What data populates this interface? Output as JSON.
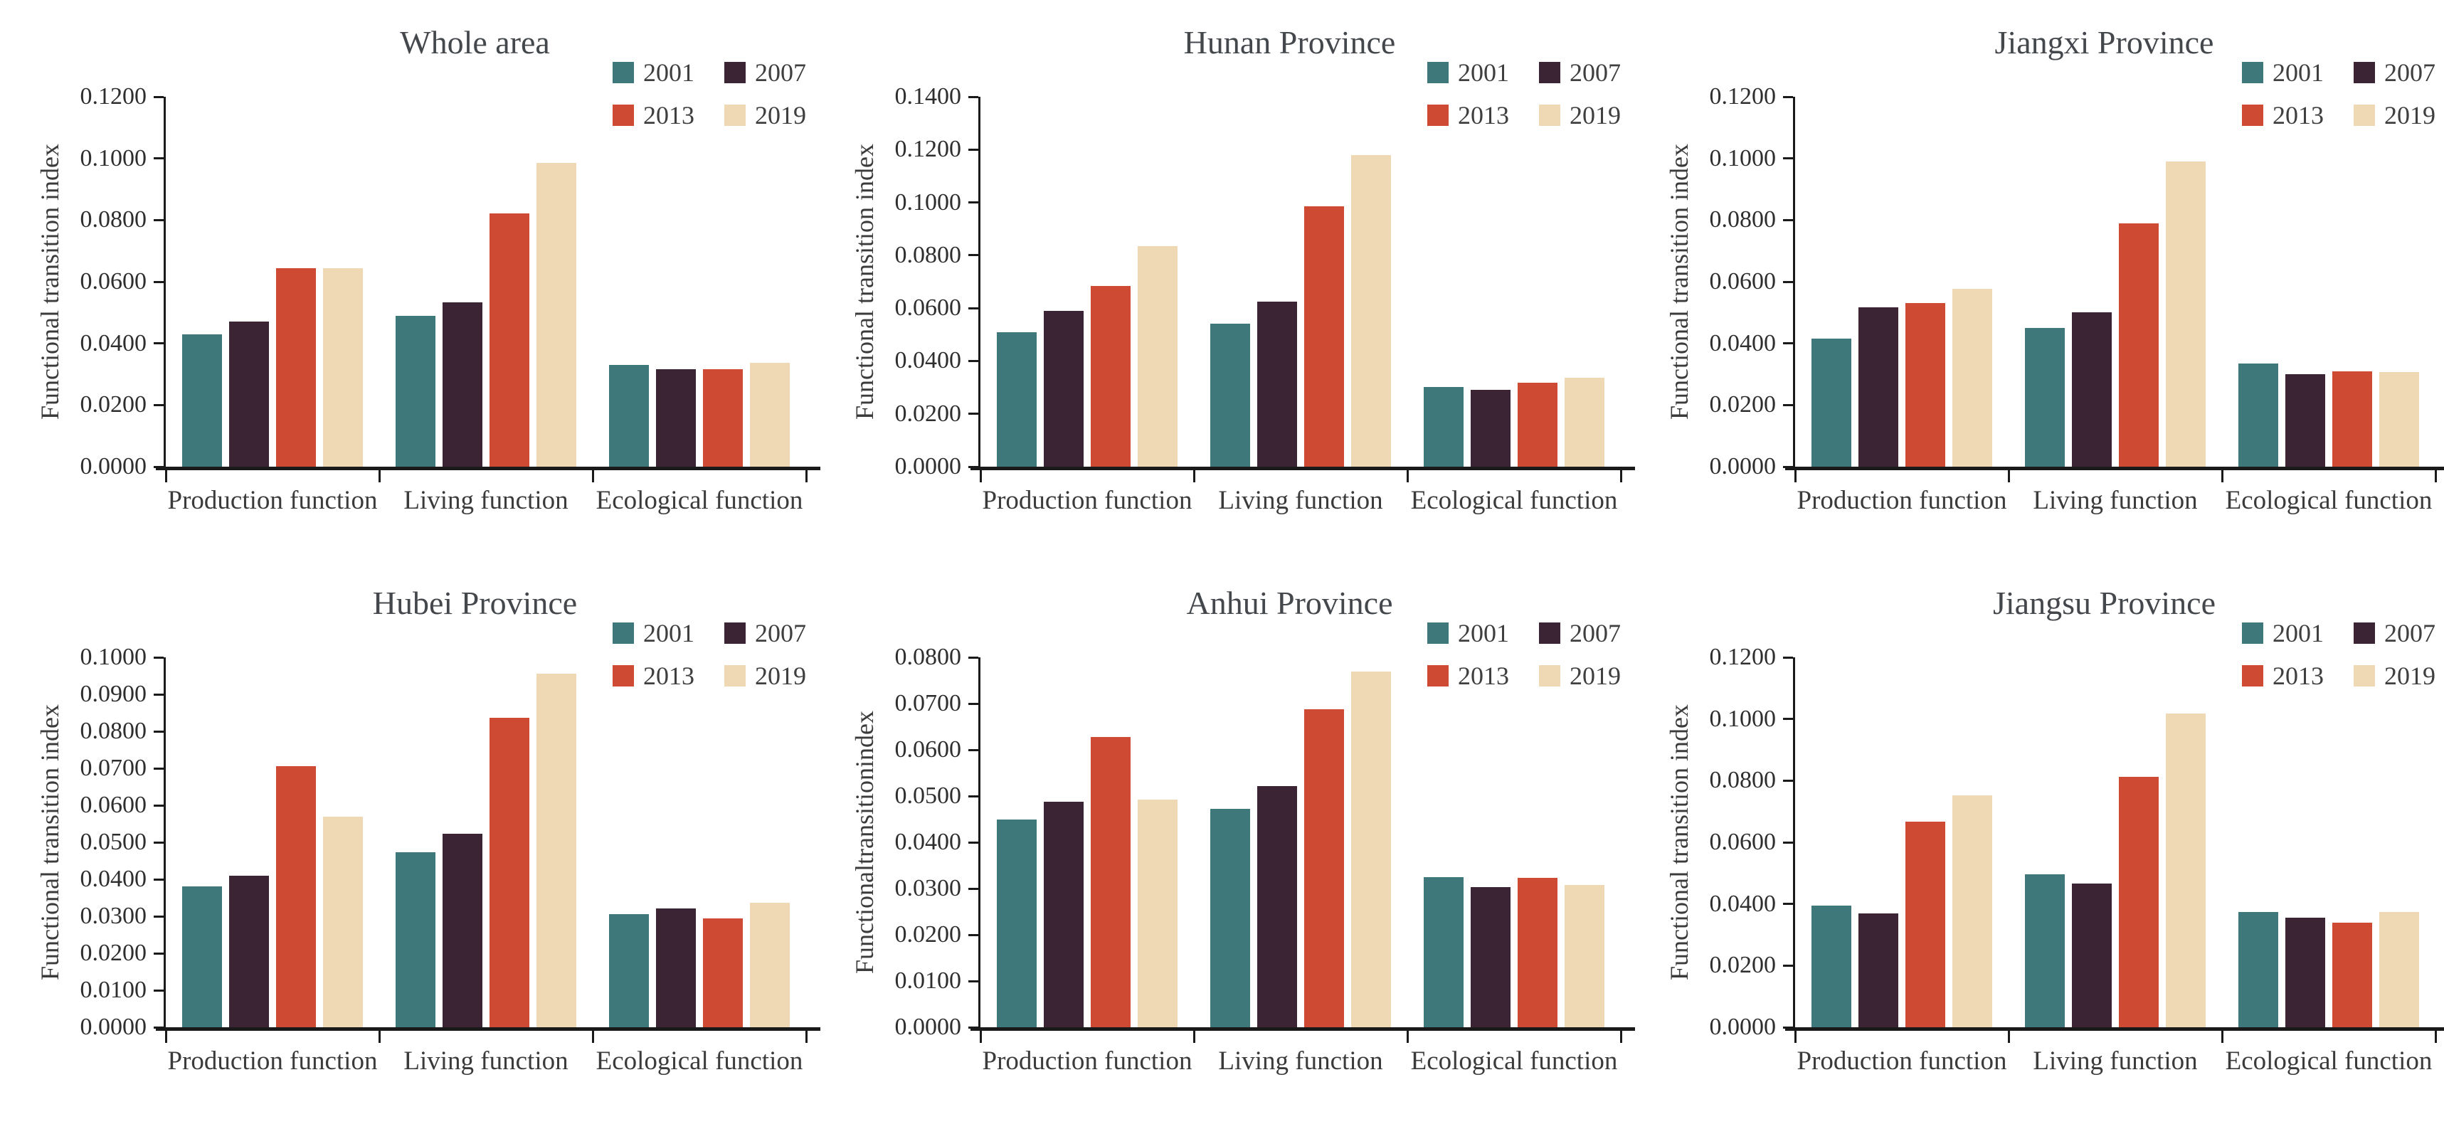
{
  "page": {
    "background": "#ffffff"
  },
  "styles": {
    "axis_color": "#1a1a1a",
    "title_color": "#44484c",
    "text_color": "#3b3b3b",
    "series_colors": {
      "2001": "#3E787B",
      "2007": "#3B2433",
      "2013": "#CF4A32",
      "2019": "#EFD9B5"
    }
  },
  "chart_data": [
    {
      "type": "bar",
      "title": "Whole area",
      "ylabel": "Functional transition index",
      "xlabel": "",
      "categories": [
        "Production function",
        "Living function",
        "Ecological function"
      ],
      "series": [
        {
          "name": "2001",
          "values": [
            0.043,
            0.049,
            0.033
          ]
        },
        {
          "name": "2007",
          "values": [
            0.047,
            0.0533,
            0.0316
          ]
        },
        {
          "name": "2013",
          "values": [
            0.0645,
            0.0822,
            0.0316
          ]
        },
        {
          "name": "2019",
          "values": [
            0.0645,
            0.0985,
            0.0336
          ]
        }
      ],
      "ylim": [
        0,
        0.12
      ],
      "yticks": [
        "0.0000",
        "0.0200",
        "0.0400",
        "0.0600",
        "0.0800",
        "0.1000",
        "0.1200"
      ],
      "legend": [
        "2001",
        "2007",
        "2013",
        "2019"
      ],
      "legend_position": "top-right",
      "grid": false
    },
    {
      "type": "bar",
      "title": "Hunan Province",
      "ylabel": "Functional transition index",
      "xlabel": "",
      "categories": [
        "Production function",
        "Living function",
        "Ecological function"
      ],
      "series": [
        {
          "name": "2001",
          "values": [
            0.051,
            0.054,
            0.0302
          ]
        },
        {
          "name": "2007",
          "values": [
            0.059,
            0.0625,
            0.029
          ]
        },
        {
          "name": "2013",
          "values": [
            0.0685,
            0.0985,
            0.0317
          ]
        },
        {
          "name": "2019",
          "values": [
            0.0835,
            0.118,
            0.0337
          ]
        }
      ],
      "ylim": [
        0,
        0.14
      ],
      "yticks": [
        "0.0000",
        "0.0200",
        "0.0400",
        "0.0600",
        "0.0800",
        "0.1000",
        "0.1200",
        "0.1400"
      ],
      "legend": [
        "2001",
        "2007",
        "2013",
        "2019"
      ],
      "legend_position": "top-right",
      "grid": false
    },
    {
      "type": "bar",
      "title": "Jiangxi Province",
      "ylabel": "Functional transition index",
      "xlabel": "",
      "categories": [
        "Production function",
        "Living function",
        "Ecological function"
      ],
      "series": [
        {
          "name": "2001",
          "values": [
            0.0416,
            0.045,
            0.0334
          ]
        },
        {
          "name": "2007",
          "values": [
            0.0516,
            0.0501,
            0.03
          ]
        },
        {
          "name": "2013",
          "values": [
            0.053,
            0.0789,
            0.0309
          ]
        },
        {
          "name": "2019",
          "values": [
            0.0576,
            0.0989,
            0.0307
          ]
        }
      ],
      "ylim": [
        0,
        0.12
      ],
      "yticks": [
        "0.0000",
        "0.0200",
        "0.0400",
        "0.0600",
        "0.0800",
        "0.1000",
        "0.1200"
      ],
      "legend": [
        "2001",
        "2007",
        "2013",
        "2019"
      ],
      "legend_position": "top-right",
      "grid": false
    },
    {
      "type": "bar",
      "title": "Hubei Province",
      "ylabel": "Functional transition index",
      "xlabel": "",
      "categories": [
        "Production function",
        "Living function",
        "Ecological function"
      ],
      "series": [
        {
          "name": "2001",
          "values": [
            0.038,
            0.0474,
            0.0305
          ]
        },
        {
          "name": "2007",
          "values": [
            0.041,
            0.0524,
            0.0322
          ]
        },
        {
          "name": "2013",
          "values": [
            0.0705,
            0.0836,
            0.0295
          ]
        },
        {
          "name": "2019",
          "values": [
            0.057,
            0.0956,
            0.0337
          ]
        }
      ],
      "ylim": [
        0,
        0.1
      ],
      "yticks": [
        "0.0000",
        "0.0100",
        "0.0200",
        "0.0300",
        "0.0400",
        "0.0500",
        "0.0600",
        "0.0700",
        "0.0800",
        "0.0900",
        "0.1000"
      ],
      "legend": [
        "2001",
        "2007",
        "2013",
        "2019"
      ],
      "legend_position": "top-right",
      "grid": false
    },
    {
      "type": "bar",
      "title": "Anhui Province",
      "ylabel": "Functionaltransitionindex",
      "xlabel": "",
      "categories": [
        "Production function",
        "Living function",
        "Ecological function"
      ],
      "series": [
        {
          "name": "2001",
          "values": [
            0.045,
            0.0472,
            0.0325
          ]
        },
        {
          "name": "2007",
          "values": [
            0.0488,
            0.0522,
            0.0303
          ]
        },
        {
          "name": "2013",
          "values": [
            0.0628,
            0.0687,
            0.0323
          ]
        },
        {
          "name": "2019",
          "values": [
            0.0492,
            0.077,
            0.0308
          ]
        }
      ],
      "ylim": [
        0,
        0.08
      ],
      "yticks": [
        "0.0000",
        "0.0100",
        "0.0200",
        "0.0300",
        "0.0400",
        "0.0500",
        "0.0600",
        "0.0700",
        "0.0800"
      ],
      "legend": [
        "2001",
        "2007",
        "2013",
        "2019"
      ],
      "legend_position": "top-right",
      "grid": false
    },
    {
      "type": "bar",
      "title": "Jiangsu Province",
      "ylabel": "Functional transition index",
      "xlabel": "",
      "categories": [
        "Production function",
        "Living function",
        "Ecological function"
      ],
      "series": [
        {
          "name": "2001",
          "values": [
            0.0395,
            0.0497,
            0.0375
          ]
        },
        {
          "name": "2007",
          "values": [
            0.037,
            0.0467,
            0.0355
          ]
        },
        {
          "name": "2013",
          "values": [
            0.0668,
            0.0812,
            0.034
          ]
        },
        {
          "name": "2019",
          "values": [
            0.0752,
            0.1018,
            0.0375
          ]
        }
      ],
      "ylim": [
        0,
        0.12
      ],
      "yticks": [
        "0.0000",
        "0.0200",
        "0.0400",
        "0.0600",
        "0.0800",
        "0.1000",
        "0.1200"
      ],
      "legend": [
        "2001",
        "2007",
        "2013",
        "2019"
      ],
      "legend_position": "top-right",
      "grid": false
    }
  ]
}
